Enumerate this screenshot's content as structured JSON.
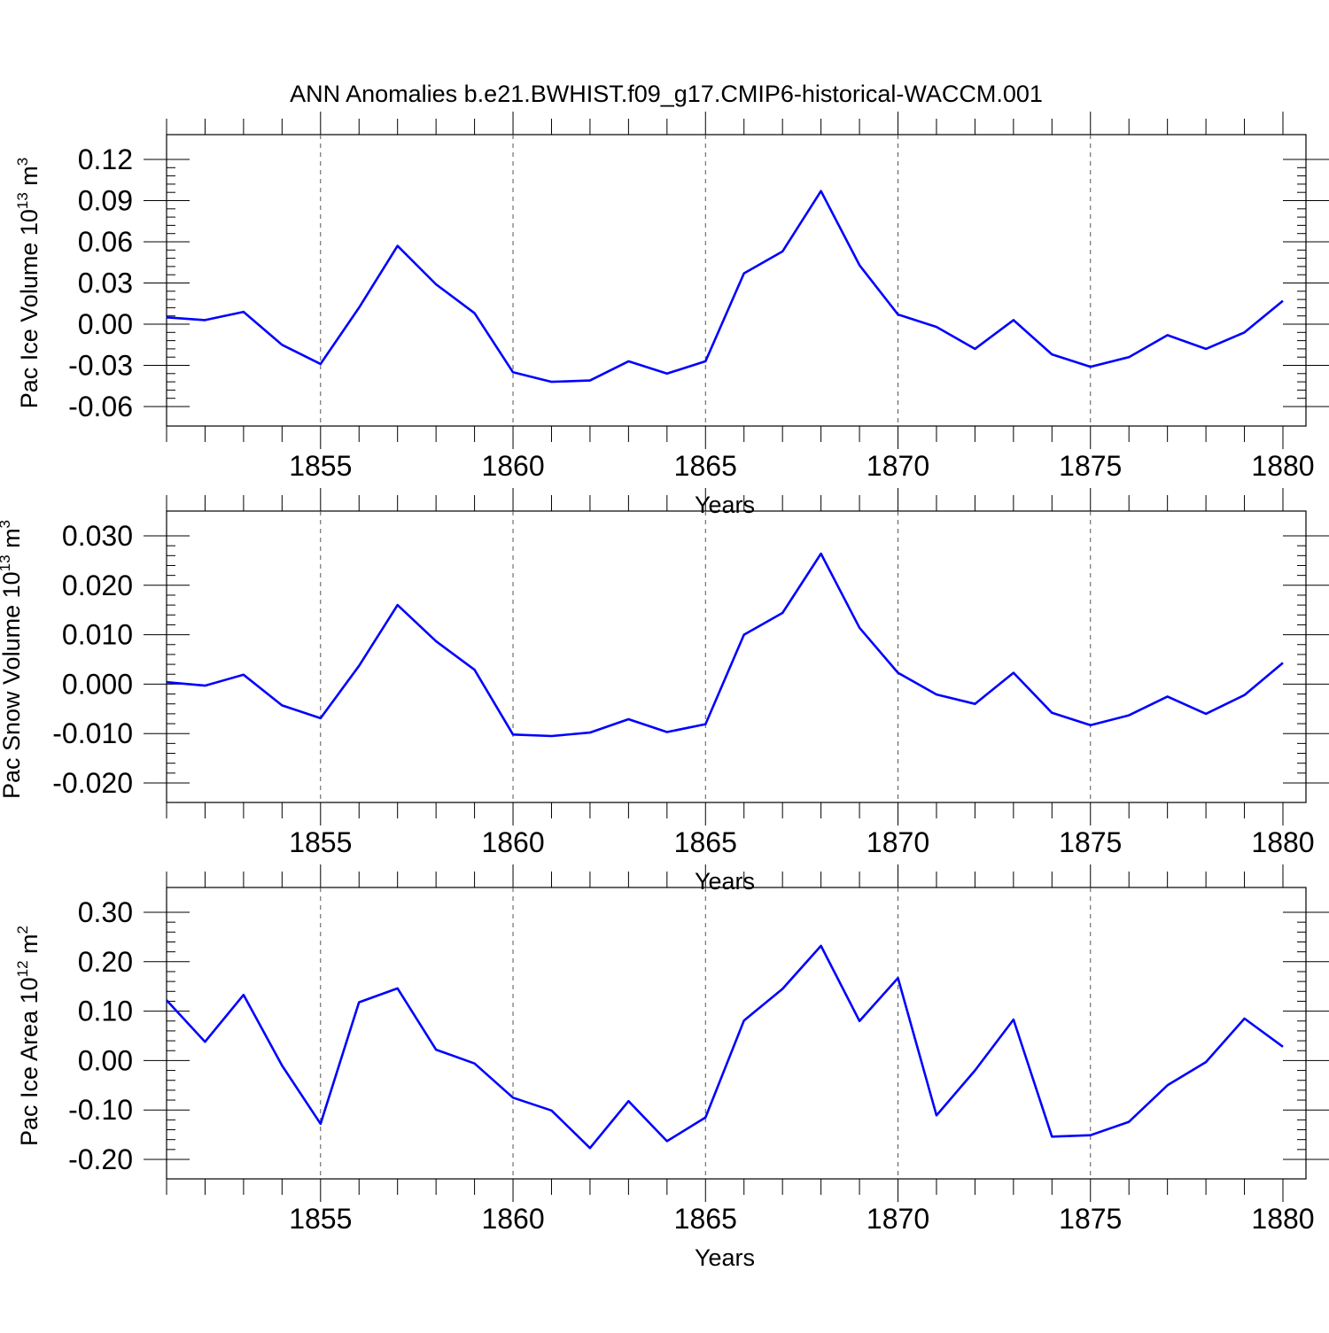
{
  "title": "ANN Anomalies b.e21.BWHIST.f09_g17.CMIP6-historical-WACCM.001",
  "colors": {
    "line": "#0000ff",
    "axis": "#000000",
    "grid": "#555555"
  },
  "chart_data": [
    {
      "type": "line",
      "ylabel_main": "Pac Ice Volume 10",
      "ylabel_exp": "13",
      "ylabel_unit": " m",
      "ylabel_unit_exp": "3",
      "xlabel": "Years",
      "xlim": [
        1851,
        1880
      ],
      "ylim": [
        -0.06,
        0.12
      ],
      "yticks": [
        -0.06,
        -0.03,
        0.0,
        0.03,
        0.06,
        0.09,
        0.12
      ],
      "ytick_labels": [
        "-0.06",
        "-0.03",
        "0.00",
        "0.03",
        "0.06",
        "0.09",
        "0.12"
      ],
      "xticks": [
        1855,
        1860,
        1865,
        1870,
        1875,
        1880
      ],
      "xtick_labels": [
        "1855",
        "1860",
        "1865",
        "1870",
        "1875",
        "1880"
      ],
      "grid": "vertical-dashed",
      "x": [
        1851,
        1852,
        1853,
        1854,
        1855,
        1856,
        1857,
        1858,
        1859,
        1860,
        1861,
        1862,
        1863,
        1864,
        1865,
        1866,
        1867,
        1868,
        1869,
        1870,
        1871,
        1872,
        1873,
        1874,
        1875,
        1876,
        1877,
        1878,
        1879,
        1880
      ],
      "values": [
        0.005,
        0.003,
        0.009,
        -0.015,
        -0.029,
        0.012,
        0.057,
        0.029,
        0.008,
        -0.035,
        -0.042,
        -0.041,
        -0.027,
        -0.036,
        -0.027,
        0.037,
        0.053,
        0.097,
        0.043,
        0.007,
        -0.002,
        -0.018,
        0.003,
        -0.022,
        -0.031,
        -0.024,
        -0.008,
        -0.018,
        -0.006,
        0.017
      ]
    },
    {
      "type": "line",
      "ylabel_main": "Pac Snow Volume 10",
      "ylabel_exp": "13",
      "ylabel_unit": " m",
      "ylabel_unit_exp": "3",
      "xlabel": "Years",
      "xlim": [
        1851,
        1880
      ],
      "ylim": [
        -0.02,
        0.03
      ],
      "yticks": [
        -0.02,
        -0.01,
        0.0,
        0.01,
        0.02,
        0.03
      ],
      "ytick_labels": [
        "-0.020",
        "-0.010",
        "0.000",
        "0.010",
        "0.020",
        "0.030"
      ],
      "xticks": [
        1855,
        1860,
        1865,
        1870,
        1875,
        1880
      ],
      "xtick_labels": [
        "1855",
        "1860",
        "1865",
        "1870",
        "1875",
        "1880"
      ],
      "grid": "vertical-dashed",
      "x": [
        1851,
        1852,
        1853,
        1854,
        1855,
        1856,
        1857,
        1858,
        1859,
        1860,
        1861,
        1862,
        1863,
        1864,
        1865,
        1866,
        1867,
        1868,
        1869,
        1870,
        1871,
        1872,
        1873,
        1874,
        1875,
        1876,
        1877,
        1878,
        1879,
        1880
      ],
      "values": [
        0.0004,
        -0.0003,
        0.0019,
        -0.0043,
        -0.0069,
        0.0037,
        0.016,
        0.0087,
        0.0029,
        -0.0102,
        -0.0105,
        -0.0098,
        -0.0071,
        -0.0097,
        -0.0081,
        0.01,
        0.0144,
        0.0264,
        0.0114,
        0.0023,
        -0.0021,
        -0.004,
        0.0023,
        -0.0058,
        -0.0083,
        -0.0063,
        -0.0025,
        -0.006,
        -0.0022,
        0.0043
      ]
    },
    {
      "type": "line",
      "ylabel_main": "Pac Ice Area 10",
      "ylabel_exp": "12",
      "ylabel_unit": " m",
      "ylabel_unit_exp": "2",
      "xlabel": "Years",
      "xlim": [
        1851,
        1880
      ],
      "ylim": [
        -0.2,
        0.3
      ],
      "yticks": [
        -0.2,
        -0.1,
        0.0,
        0.1,
        0.2,
        0.3
      ],
      "ytick_labels": [
        "-0.20",
        "-0.10",
        "0.00",
        "0.10",
        "0.20",
        "0.30"
      ],
      "xticks": [
        1855,
        1860,
        1865,
        1870,
        1875,
        1880
      ],
      "xtick_labels": [
        "1855",
        "1860",
        "1865",
        "1870",
        "1875",
        "1880"
      ],
      "grid": "vertical-dashed",
      "x": [
        1851,
        1852,
        1853,
        1854,
        1855,
        1856,
        1857,
        1858,
        1859,
        1860,
        1861,
        1862,
        1863,
        1864,
        1865,
        1866,
        1867,
        1868,
        1869,
        1870,
        1871,
        1872,
        1873,
        1874,
        1875,
        1876,
        1877,
        1878,
        1879,
        1880
      ],
      "values": [
        0.122,
        0.038,
        0.133,
        -0.01,
        -0.128,
        0.118,
        0.146,
        0.022,
        -0.006,
        -0.075,
        -0.101,
        -0.177,
        -0.082,
        -0.163,
        -0.115,
        0.081,
        0.145,
        0.232,
        0.08,
        0.167,
        -0.111,
        -0.02,
        0.083,
        -0.154,
        -0.151,
        -0.124,
        -0.05,
        -0.003,
        0.085,
        0.028
      ]
    }
  ]
}
